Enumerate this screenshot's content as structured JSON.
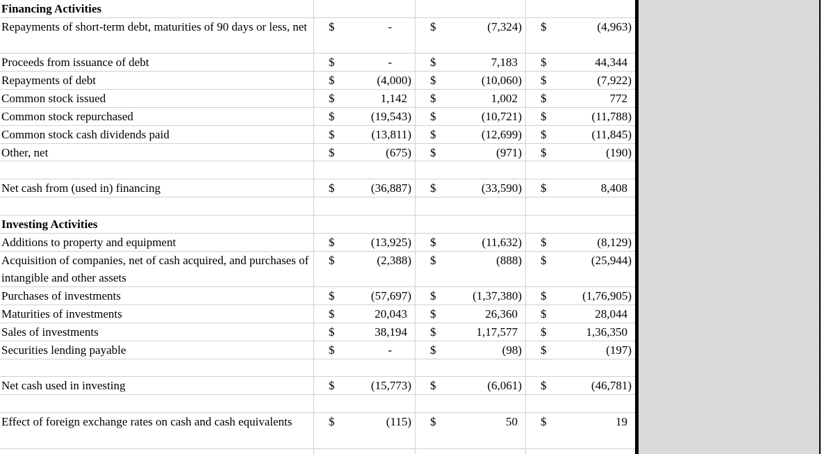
{
  "sheet": {
    "currency": "$",
    "rows": [
      {
        "label": "Financing Activities",
        "bold": true,
        "values": null
      },
      {
        "label": "Repayments of short-term debt, maturities of 90 days or less, net",
        "two_line": true,
        "values": [
          "-",
          "(7,324)",
          "(4,963)"
        ]
      },
      {
        "label": "Proceeds from issuance of debt",
        "values": [
          "-",
          "7,183",
          "44,344"
        ]
      },
      {
        "label": "Repayments of debt",
        "values": [
          "(4,000)",
          "(10,060)",
          "(7,922)"
        ]
      },
      {
        "label": "Common stock issued",
        "values": [
          "1,142",
          "1,002",
          "772"
        ]
      },
      {
        "label": "Common stock repurchased",
        "values": [
          "(19,543)",
          "(10,721)",
          "(11,788)"
        ]
      },
      {
        "label": "Common stock cash dividends paid",
        "values": [
          "(13,811)",
          "(12,699)",
          "(11,845)"
        ]
      },
      {
        "label": "Other, net",
        "values": [
          "(675)",
          "(971)",
          "(190)"
        ]
      },
      {
        "label": "",
        "values": null
      },
      {
        "label": "Net cash from (used in) financing",
        "values": [
          "(36,887)",
          "(33,590)",
          "8,408"
        ]
      },
      {
        "label": "",
        "values": null
      },
      {
        "label": "Investing Activities",
        "bold": true,
        "values": null
      },
      {
        "label": "Additions to property and equipment",
        "values": [
          "(13,925)",
          "(11,632)",
          "(8,129)"
        ]
      },
      {
        "label": "Acquisition of companies, net of cash acquired, and purchases of intangible and other assets",
        "two_line": true,
        "values": [
          "(2,388)",
          "(888)",
          "(25,944)"
        ]
      },
      {
        "label": "Purchases of investments",
        "values": [
          "(57,697)",
          "(1,37,380)",
          "(1,76,905)"
        ]
      },
      {
        "label": "Maturities of investments",
        "values": [
          "20,043",
          "26,360",
          "28,044"
        ]
      },
      {
        "label": "Sales of investments",
        "values": [
          "38,194",
          "1,17,577",
          "1,36,350"
        ]
      },
      {
        "label": "Securities lending payable",
        "values": [
          "-",
          "(98)",
          "(197)"
        ]
      },
      {
        "label": "",
        "values": null
      },
      {
        "label": "Net cash used in investing",
        "values": [
          "(15,773)",
          "(6,061)",
          "(46,781)"
        ]
      },
      {
        "label": "",
        "values": null
      },
      {
        "label": "Effect of foreign exchange rates on cash and cash equivalents",
        "two_line": true,
        "values": [
          "(115)",
          "50",
          "19"
        ]
      },
      {
        "label": "",
        "values": null
      }
    ]
  },
  "colors": {
    "gridline": "#d0d0d0",
    "shaded_column_fill": "#d9d9d9",
    "selection_border": "#000000",
    "text": "#000000",
    "cell_background": "#ffffff"
  }
}
